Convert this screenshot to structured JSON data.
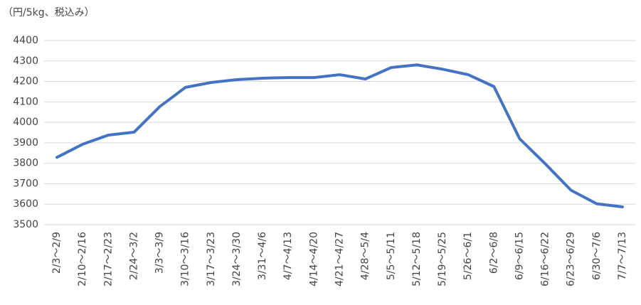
{
  "chart_data": {
    "type": "line",
    "y_axis_label": "（円/5kg、税込み）",
    "categories": [
      "2/3〜2/9",
      "2/10〜2/16",
      "2/17〜2/23",
      "2/24〜3/2",
      "3/3〜3/9",
      "3/10〜3/16",
      "3/17〜3/23",
      "3/24〜3/30",
      "3/31〜4/6",
      "4/7〜4/13",
      "4/14〜4/20",
      "4/21〜4/27",
      "4/28〜5/4",
      "5/5〜5/11",
      "5/12〜5/18",
      "5/19〜5/25",
      "5/26〜6/1",
      "6/2〜6/8",
      "6/9〜6/15",
      "6/16〜6/22",
      "6/23〜6/29",
      "6/30〜7/6",
      "7/7〜7/13"
    ],
    "values": [
      3829,
      3893,
      3938,
      3952,
      4077,
      4171,
      4195,
      4209,
      4216,
      4219,
      4219,
      4233,
      4212,
      4268,
      4281,
      4260,
      4233,
      4175,
      3920,
      3797,
      3668,
      3602,
      3587
    ],
    "color": "#4472c4",
    "ylim": [
      3500,
      4400
    ],
    "yticks": [
      3500,
      3600,
      3700,
      3800,
      3900,
      4000,
      4100,
      4200,
      4300,
      4400
    ],
    "grid": true
  }
}
